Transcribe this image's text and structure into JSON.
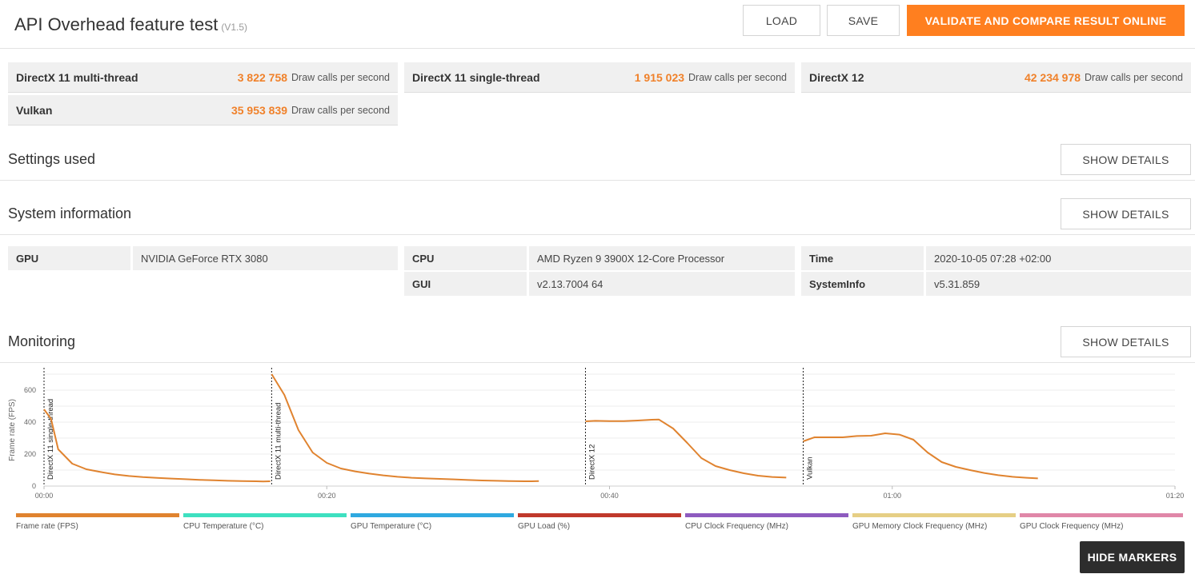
{
  "header": {
    "title": "API Overhead feature test",
    "version": "(V1.5)",
    "load_label": "LOAD",
    "save_label": "SAVE",
    "validate_label": "VALIDATE AND COMPARE RESULT ONLINE"
  },
  "scores": [
    {
      "name": "DirectX 11 multi-thread",
      "value": "3 822 758",
      "unit": "Draw calls per second"
    },
    {
      "name": "DirectX 11 single-thread",
      "value": "1 915 023",
      "unit": "Draw calls per second"
    },
    {
      "name": "DirectX 12",
      "value": "42 234 978",
      "unit": "Draw calls per second"
    },
    {
      "name": "Vulkan",
      "value": "35 953 839",
      "unit": "Draw calls per second"
    }
  ],
  "settings": {
    "title": "Settings used",
    "show_details_label": "SHOW DETAILS"
  },
  "system": {
    "title": "System information",
    "show_details_label": "SHOW DETAILS",
    "rows": [
      {
        "key": "GPU",
        "value": "NVIDIA GeForce RTX 3080"
      },
      {
        "key": "CPU",
        "value": "AMD Ryzen 9 3900X 12-Core Processor"
      },
      {
        "key": "Time",
        "value": "2020-10-05 07:28 +02:00"
      },
      {
        "key": "GUI",
        "value": "v2.13.7004 64"
      },
      {
        "key": "SystemInfo",
        "value": "v5.31.859"
      }
    ]
  },
  "monitoring": {
    "title": "Monitoring",
    "show_details_label": "SHOW DETAILS",
    "hide_markers_label": "HIDE MARKERS",
    "legend": [
      {
        "label": "Frame rate (FPS)",
        "color": "#e0832f"
      },
      {
        "label": "CPU Temperature (°C)",
        "color": "#3ee0c0"
      },
      {
        "label": "GPU Temperature (°C)",
        "color": "#2fa9e0"
      },
      {
        "label": "GPU Load (%)",
        "color": "#c0392b"
      },
      {
        "label": "CPU Clock Frequency (MHz)",
        "color": "#8e5bbf"
      },
      {
        "label": "GPU Memory Clock Frequency (MHz)",
        "color": "#e6cf85"
      },
      {
        "label": "GPU Clock Frequency (MHz)",
        "color": "#e087a8"
      }
    ]
  },
  "chart_data": {
    "type": "line",
    "ylabel": "Frame rate (FPS)",
    "xlabel": "",
    "x_unit": "seconds",
    "xlim": [
      0,
      80
    ],
    "ylim": [
      0,
      700
    ],
    "yticks": [
      0,
      200,
      400,
      600
    ],
    "xticks": [
      {
        "t": 0,
        "label": "00:00"
      },
      {
        "t": 20,
        "label": "00:20"
      },
      {
        "t": 40,
        "label": "00:40"
      },
      {
        "t": 60,
        "label": "01:00"
      },
      {
        "t": 80,
        "label": "01:20"
      }
    ],
    "grid": true,
    "markers": [
      {
        "t": 0,
        "label": "DirectX 11 single-thread"
      },
      {
        "t": 16.1,
        "label": "DirectX 11 multi-thread"
      },
      {
        "t": 38.3,
        "label": "DirectX 12"
      },
      {
        "t": 53.7,
        "label": "Vulkan"
      }
    ],
    "series": [
      {
        "color": "#e0832f",
        "segments": [
          [
            [
              0,
              480
            ],
            [
              0.5,
              420
            ],
            [
              1,
              230
            ],
            [
              2,
              140
            ],
            [
              3,
              105
            ],
            [
              4,
              88
            ],
            [
              5,
              73
            ],
            [
              6,
              63
            ],
            [
              7,
              56
            ],
            [
              8,
              51
            ],
            [
              9,
              47
            ],
            [
              10,
              43
            ],
            [
              11,
              39
            ],
            [
              12,
              36
            ],
            [
              13,
              33
            ],
            [
              14,
              31
            ],
            [
              15,
              30
            ],
            [
              15.5,
              29
            ],
            [
              16,
              30
            ]
          ],
          [
            [
              16.1,
              700
            ],
            [
              17,
              570
            ],
            [
              18,
              350
            ],
            [
              19,
              210
            ],
            [
              20,
              145
            ],
            [
              21,
              110
            ],
            [
              22,
              92
            ],
            [
              23,
              78
            ],
            [
              24,
              67
            ],
            [
              25,
              58
            ],
            [
              26,
              52
            ],
            [
              27,
              48
            ],
            [
              28,
              45
            ],
            [
              29,
              42
            ],
            [
              30,
              38
            ],
            [
              31,
              35
            ],
            [
              32,
              33
            ],
            [
              33,
              31
            ],
            [
              34,
              30
            ],
            [
              34.5,
              30
            ],
            [
              35,
              31
            ]
          ],
          [
            [
              38.3,
              405
            ],
            [
              39,
              408
            ],
            [
              40,
              406
            ],
            [
              41,
              406
            ],
            [
              42,
              410
            ],
            [
              43,
              415
            ],
            [
              43.5,
              416
            ],
            [
              44.5,
              360
            ],
            [
              45.5,
              270
            ],
            [
              46.5,
              175
            ],
            [
              47.5,
              125
            ],
            [
              48.5,
              100
            ],
            [
              49.5,
              80
            ],
            [
              50.5,
              65
            ],
            [
              51.5,
              57
            ],
            [
              52.5,
              53
            ]
          ],
          [
            [
              53.7,
              280
            ],
            [
              54.5,
              305
            ],
            [
              55.5,
              305
            ],
            [
              56.5,
              305
            ],
            [
              57.5,
              313
            ],
            [
              58.5,
              315
            ],
            [
              59.5,
              330
            ],
            [
              60.5,
              322
            ],
            [
              61.5,
              290
            ],
            [
              62.5,
              210
            ],
            [
              63.5,
              150
            ],
            [
              64.5,
              120
            ],
            [
              65.5,
              100
            ],
            [
              66.5,
              82
            ],
            [
              67.5,
              68
            ],
            [
              68.5,
              58
            ],
            [
              69.5,
              52
            ],
            [
              70.3,
              48
            ]
          ]
        ]
      }
    ]
  }
}
